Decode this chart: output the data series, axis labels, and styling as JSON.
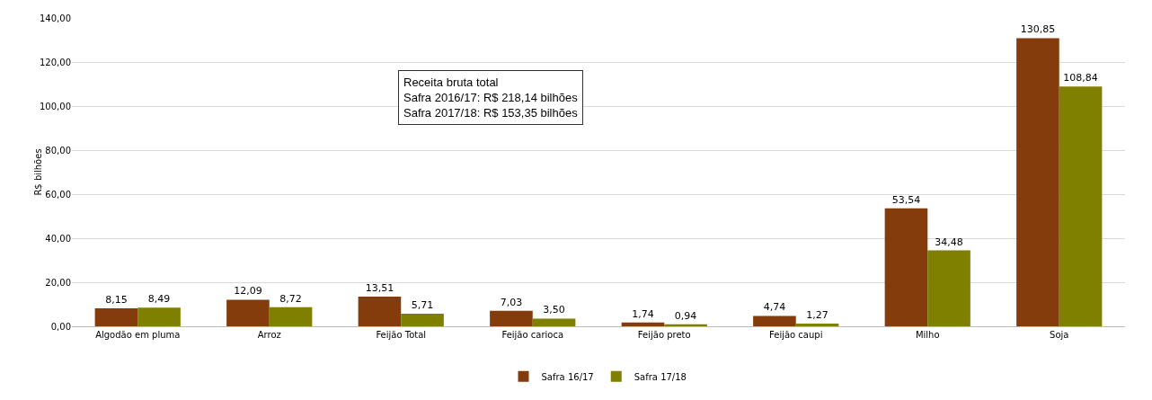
{
  "chart_data": {
    "type": "bar",
    "ylabel": "R$ bilhões",
    "categories": [
      "Algodão em pluma",
      "Arroz",
      "Feijão Total",
      "Feijão carioca",
      "Feijão preto",
      "Feijão caupi",
      "Milho",
      "Soja"
    ],
    "series": [
      {
        "name": "Safra 16/17",
        "color": "#843c0c",
        "values": [
          8.15,
          12.09,
          13.51,
          7.03,
          1.74,
          4.74,
          53.54,
          130.85
        ],
        "value_labels": [
          "8,15",
          "12,09",
          "13,51",
          "7,03",
          "1,74",
          "4,74",
          "53,54",
          "130,85"
        ]
      },
      {
        "name": "Safra 17/18",
        "color": "#7f7f00",
        "values": [
          8.49,
          8.72,
          5.71,
          3.5,
          0.94,
          1.27,
          34.48,
          108.84
        ],
        "value_labels": [
          "8,49",
          "8,72",
          "5,71",
          "3,50",
          "0,94",
          "1,27",
          "34,48",
          "108,84"
        ]
      }
    ],
    "ylim": [
      0,
      140
    ],
    "yticks": [
      {
        "value": 0,
        "label": "0,00"
      },
      {
        "value": 20,
        "label": "20,00"
      },
      {
        "value": 40,
        "label": "40,00"
      },
      {
        "value": 60,
        "label": "60,00"
      },
      {
        "value": 80,
        "label": "80,00"
      },
      {
        "value": 100,
        "label": "100,00"
      },
      {
        "value": 120,
        "label": "120,00"
      },
      {
        "value": 140,
        "label": "140,00"
      }
    ],
    "grid": "y",
    "legend": "bottom",
    "annotations": [
      "Receita bruta total\nSafra 2016/17: R$ 218,14 bilhões\nSafra 2017/18: R$ 153,35 bilhões"
    ]
  }
}
